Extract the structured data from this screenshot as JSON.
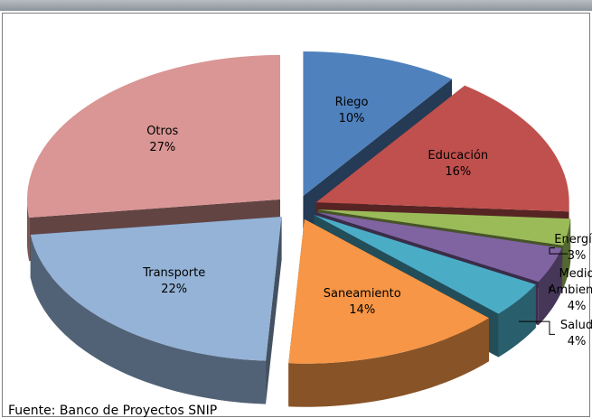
{
  "chart_data": {
    "type": "pie",
    "categories": [
      "Riego",
      "Educación",
      "Energía",
      "Medio Ambiente",
      "Salud",
      "Saneamiento",
      "Transporte",
      "Otros"
    ],
    "values": [
      10,
      16,
      3,
      4,
      4,
      14,
      22,
      27
    ],
    "value_labels": [
      "10%",
      "16%",
      "3%",
      "4%",
      "4%",
      "14%",
      "22%",
      "27%"
    ],
    "colors": [
      "#4f81bd",
      "#c0504d",
      "#9bbb59",
      "#8064a2",
      "#4bacc6",
      "#f79646",
      "#95b3d7",
      "#d99694"
    ],
    "source": "Fuente: Banco de Proyectos SNIP"
  }
}
